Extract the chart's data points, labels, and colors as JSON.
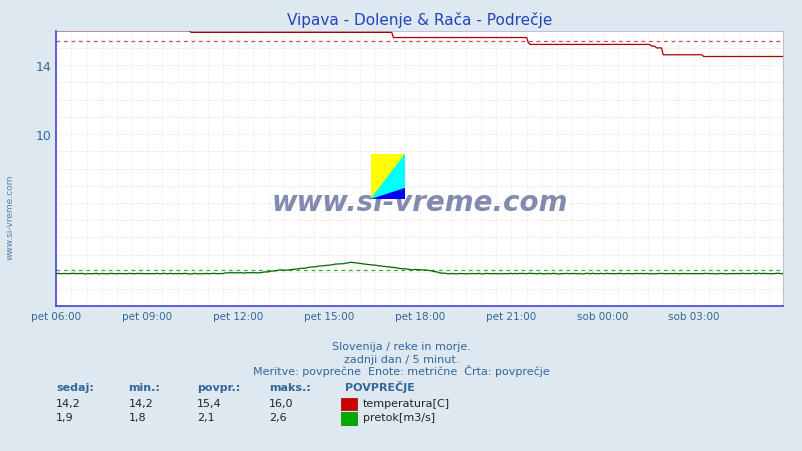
{
  "title": "Vipava - Dolenje & Rača - Podrečje",
  "title_color": "#2244bb",
  "bg_color": "#dde8f0",
  "plot_bg_color": "#ffffff",
  "grid_h_color": "#ffaaaa",
  "grid_v_color": "#ffbbbb",
  "border_left_color": "#4444cc",
  "border_bottom_color": "#4444cc",
  "border_other_color": "#aaaacc",
  "xlabel_ticks": [
    "pet 06:00",
    "pet 09:00",
    "pet 12:00",
    "pet 15:00",
    "pet 18:00",
    "pet 21:00",
    "sob 00:00",
    "sob 03:00"
  ],
  "tick_positions": [
    0,
    54,
    108,
    162,
    216,
    270,
    324,
    378
  ],
  "total_points": 432,
  "ylim": [
    0,
    16.0
  ],
  "ytick_vals": [
    10,
    14
  ],
  "temp_color": "#aa0000",
  "temp_avg_color": "#dd4444",
  "flow_color": "#006600",
  "flow_avg_color": "#33aa33",
  "watermark_color": "#1a3070",
  "watermark_text": "www.si-vreme.com",
  "subtitle1": "Slovenija / reke in morje.",
  "subtitle2": "zadnji dan / 5 minut.",
  "subtitle3": "Meritve: povprečne  Enote: metrične  Črta: povprečje",
  "subtitle_color": "#336699",
  "temp_min": 14.2,
  "temp_max": 16.0,
  "temp_avg": 15.4,
  "temp_current": 14.2,
  "flow_min": 1.8,
  "flow_max": 2.6,
  "flow_avg": 2.1,
  "flow_current": 1.9,
  "temp_avg_line": 15.4,
  "flow_avg_line": 2.1,
  "left_label_color": "#336699",
  "watermark_side": "www.si-vreme.com"
}
